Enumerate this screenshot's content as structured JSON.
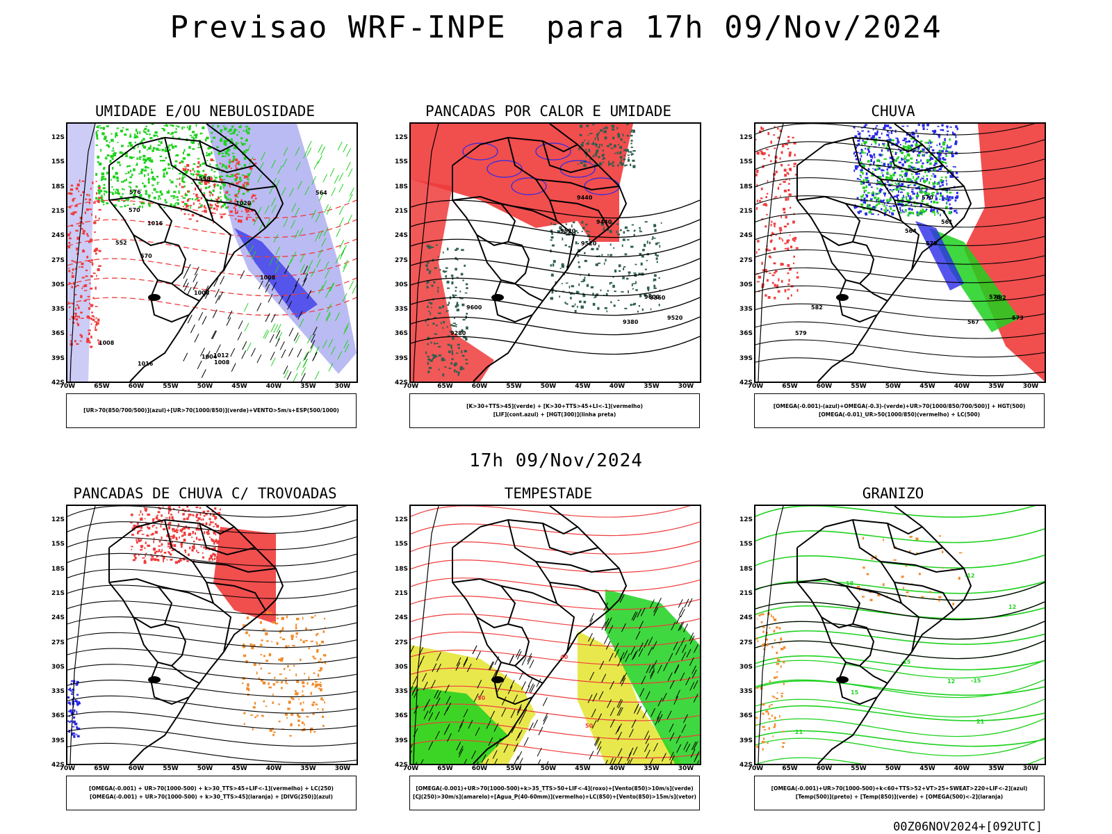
{
  "header": {
    "title": "Previsao WRF-INPE  para 17h 09/Nov/2024"
  },
  "mid_title": "17h 09/Nov/2024",
  "footer": "00Z06NOV2024+[092UTC]",
  "axes": {
    "lat_labels": [
      "12S",
      "15S",
      "18S",
      "21S",
      "24S",
      "27S",
      "30S",
      "33S",
      "36S",
      "39S",
      "42S"
    ],
    "lon_labels": [
      "70W",
      "65W",
      "60W",
      "55W",
      "50W",
      "45W",
      "40W",
      "35W",
      "30W"
    ]
  },
  "colors": {
    "red": "#ef3b3b",
    "green": "#1fd11f",
    "blue": "#2a2ae8",
    "lavender": "#aaaaf0",
    "orange": "#f08a2a",
    "yellow": "#e6e63a",
    "darkgreen": "#2f5e4e"
  },
  "panels": [
    {
      "title": "UMIDADE E/OU NEBULOSIDADE",
      "legend": [
        "[UR>70(850/700/500)](azul)+[UR>70(1000/850)](verde)+VENTO>5m/s+ESP(500/1000)"
      ],
      "contour_labels": [
        "1008",
        "1004",
        "1008",
        "1012",
        "1008",
        "1016",
        "1020",
        "1016",
        "1008",
        "576",
        "570",
        "564",
        "558",
        "552",
        "570"
      ]
    },
    {
      "title": "PANCADAS POR CALOR E UMIDADE",
      "legend": [
        "[K>30+TTS>45](verde) + [K>30+TTS>45+LI<-1](vermelho)",
        "[LIF](cont.azul) + [HGT(300)](linha preta)"
      ],
      "contour_labels": [
        "9600",
        "9520",
        "9600",
        "9520",
        "9440",
        "9380",
        "9520",
        "9440",
        "9360",
        "9280"
      ]
    },
    {
      "title": "CHUVA",
      "legend": [
        "[OMEGA(-0.001)-(azul)+OMEGA(-0.3)-(verde)+UR>70(1000/850/700/500)] + HGT(500)",
        "[OMEGA(-0.01)_UR>50(1000/850)(vermelho) + LC(500)"
      ],
      "contour_labels": [
        "582",
        "579",
        "576",
        "573",
        "570",
        "567",
        "564",
        "561",
        "582",
        "579"
      ]
    },
    {
      "title": "PANCADAS DE CHUVA C/ TROVOADAS",
      "legend": [
        "[OMEGA(-0.001) + UR>70(1000-500) + k>30_TTS>45+LIF<-1](vermelho) + LC(250)",
        "[OMEGA(-0.001) + UR>70(1000-500) + k>30_TTS>45](laranja) + [DIVG(250)](azul)"
      ],
      "contour_labels": []
    },
    {
      "title": "TEMPESTADE",
      "legend": [
        "[OMEGA(-0.001)+UR>70(1000-500)+k>35_TTS>50+LIF<-4](roxo)+[Vento(850)>10m/s](verde)",
        "[CJ(250)>30m/s](amarelo)+[Agua_P(40-60mm)](vermelho)+LC(850)+[Vento(850)>15m/s](vetor)"
      ],
      "contour_labels": [
        "50",
        "50",
        "40"
      ]
    },
    {
      "title": "GRANIZO",
      "legend": [
        "[OMEGA(-0.001)+UR>70(1000-500)+k<60+TTS>52+VT>25+SWEAT>220+LIF<-2](azul)",
        "[Temp(500)](preto) + [Temp(850)](verde) + [OMEGA(500)<-2](laranja)"
      ],
      "contour_labels": [
        "21",
        "21",
        "18",
        "15",
        "12",
        "12",
        "-15",
        "-12",
        "-15"
      ]
    }
  ]
}
